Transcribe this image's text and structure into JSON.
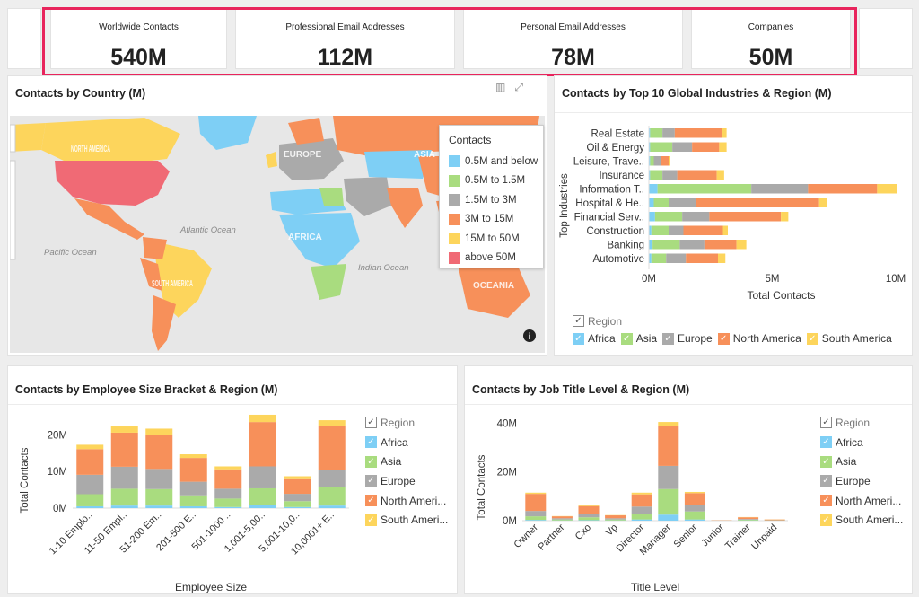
{
  "kpis": [
    {
      "label": "Worldwide Contacts",
      "value": "540M"
    },
    {
      "label": "Professional Email Addresses",
      "value": "112M"
    },
    {
      "label": "Personal Email Addresses",
      "value": "78M"
    },
    {
      "label": "Companies",
      "value": "50M"
    }
  ],
  "colors": {
    "Africa": "#7ecff5",
    "Asia": "#a9dc7f",
    "Europe": "#aaaaaa",
    "North America": "#f7905a",
    "South America": "#fdd55c",
    "above50": "#f06a75",
    "highlight": "#e8245c"
  },
  "map_panel": {
    "title": "Contacts by Country (M)",
    "legend_title": "Contacts",
    "legend_items": [
      {
        "label": "0.5M and below",
        "color": "#7ecff5"
      },
      {
        "label": "0.5M to 1.5M",
        "color": "#a9dc7f"
      },
      {
        "label": "1.5M to 3M",
        "color": "#aaaaaa"
      },
      {
        "label": "3M to 15M",
        "color": "#f7905a"
      },
      {
        "label": "15M to 50M",
        "color": "#fdd55c"
      },
      {
        "label": "above 50M",
        "color": "#f06a75"
      }
    ],
    "labels": {
      "north_america": "NORTH AMERICA",
      "south_america": "SOUTH AMERICA",
      "europe": "EUROPE",
      "africa": "AFRICA",
      "asia": "ASIA",
      "oceania": "OCEANIA",
      "atlantic": "Atlantic Ocean",
      "pacific": "Pacific Ocean",
      "indian": "Indian Ocean"
    }
  },
  "chart_data": [
    {
      "type": "bar",
      "orientation": "horizontal",
      "stacked": true,
      "title": "Contacts by Top 10 Global Industries & Region (M)",
      "xlabel": "Total Contacts",
      "ylabel": "Top Industries",
      "categories": [
        "Real Estate",
        "Oil & Energy",
        "Leisure, Trave..",
        "Insurance",
        "Information T..",
        "Hospital & He..",
        "Financial Serv..",
        "Construction",
        "Banking",
        "Automotive"
      ],
      "x_ticks": [
        "0M",
        "5M",
        "10M"
      ],
      "xlim": [
        0,
        10
      ],
      "legend_title": "Region",
      "series": [
        {
          "name": "Africa",
          "values": [
            0.05,
            0.05,
            0.05,
            0.05,
            0.35,
            0.2,
            0.25,
            0.1,
            0.15,
            0.1
          ]
        },
        {
          "name": "Asia",
          "values": [
            0.5,
            0.9,
            0.15,
            0.5,
            3.8,
            0.6,
            1.1,
            0.7,
            1.1,
            0.6
          ]
        },
        {
          "name": "Europe",
          "values": [
            0.5,
            0.8,
            0.3,
            0.6,
            2.3,
            1.1,
            1.1,
            0.6,
            1.0,
            0.8
          ]
        },
        {
          "name": "North America",
          "values": [
            1.9,
            1.1,
            0.3,
            1.6,
            2.8,
            5.0,
            2.9,
            1.6,
            1.3,
            1.3
          ]
        },
        {
          "name": "South America",
          "values": [
            0.2,
            0.3,
            0.05,
            0.3,
            0.8,
            0.3,
            0.3,
            0.2,
            0.4,
            0.3
          ]
        }
      ]
    },
    {
      "type": "bar",
      "stacked": true,
      "title": "Contacts by Employee Size Bracket & Region (M)",
      "xlabel": "Employee Size",
      "ylabel": "Total Contacts",
      "categories": [
        "1-10 Emplo..",
        "11-50 Empl..",
        "51-200 Em..",
        "201-500 E..",
        "501-1000 ..",
        "1,001-5,00..",
        "5,001-10,0..",
        "10,0001+ E.."
      ],
      "y_ticks": [
        "0M",
        "10M",
        "20M"
      ],
      "ylim": [
        0,
        25
      ],
      "legend_title": "Region",
      "legend_labels": [
        "Africa",
        "Asia",
        "Europe",
        "North Ameri...",
        "South Ameri..."
      ],
      "series": [
        {
          "name": "Africa",
          "values": [
            0.5,
            0.7,
            0.7,
            0.5,
            0.3,
            0.8,
            0.3,
            0.7
          ]
        },
        {
          "name": "Asia",
          "values": [
            3.3,
            4.6,
            4.5,
            3.0,
            2.3,
            4.6,
            1.6,
            5.0
          ]
        },
        {
          "name": "Europe",
          "values": [
            5.3,
            6.0,
            5.5,
            3.7,
            2.7,
            6.0,
            2.0,
            4.7
          ]
        },
        {
          "name": "North America",
          "values": [
            7.0,
            9.3,
            9.3,
            6.5,
            5.3,
            12.1,
            4.0,
            12.1
          ]
        },
        {
          "name": "South America",
          "values": [
            1.2,
            1.7,
            1.7,
            1.0,
            0.8,
            2.0,
            0.8,
            1.5
          ]
        }
      ]
    },
    {
      "type": "bar",
      "stacked": true,
      "title": "Contacts by Job Title Level & Region (M)",
      "xlabel": "Title Level",
      "ylabel": "Total Contacts",
      "categories": [
        "Owner",
        "Partner",
        "Cxo",
        "Vp",
        "Director",
        "Manager",
        "Senior",
        "Junior",
        "Trainer",
        "Unpaid"
      ],
      "y_ticks": [
        "0M",
        "20M",
        "40M"
      ],
      "ylim": [
        0,
        42
      ],
      "legend_title": "Region",
      "legend_labels": [
        "Africa",
        "Asia",
        "Europe",
        "North Ameri...",
        "South Ameri..."
      ],
      "series": [
        {
          "name": "Africa",
          "values": [
            0.3,
            0.1,
            0.2,
            0.1,
            0.5,
            2.5,
            0.5,
            0.0,
            0.1,
            0.0
          ]
        },
        {
          "name": "Asia",
          "values": [
            1.5,
            0.4,
            1.2,
            0.4,
            2.3,
            10.5,
            3.3,
            0.05,
            0.3,
            0.1
          ]
        },
        {
          "name": "Europe",
          "values": [
            2.2,
            0.5,
            1.3,
            0.5,
            3.0,
            9.5,
            2.7,
            0.05,
            0.3,
            0.1
          ]
        },
        {
          "name": "North America",
          "values": [
            7.0,
            0.8,
            3.3,
            1.2,
            5.0,
            16.5,
            4.8,
            0.1,
            0.7,
            0.3
          ]
        },
        {
          "name": "South America",
          "values": [
            0.5,
            0.1,
            0.3,
            0.1,
            0.7,
            1.5,
            0.5,
            0.0,
            0.1,
            0.05
          ]
        }
      ]
    }
  ]
}
